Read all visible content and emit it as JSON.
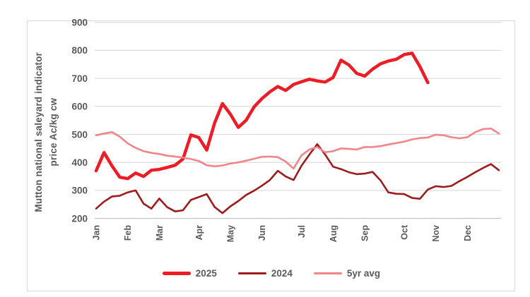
{
  "style": {
    "text_color": "#595959",
    "gridline_color": "#d9d9d9",
    "axis_line_color": "#bfbfbf",
    "background": "#ffffff"
  },
  "chart_data": {
    "type": "line",
    "title": "",
    "ylabel": "Mutton national saleyard indicator price Ac/kg cw",
    "ylabel_line1": "Mutton national saleyard indicator",
    "ylabel_line2": "price Ac/kg cw",
    "y_axis": {
      "min": 200,
      "max": 900,
      "ticks": [
        900,
        800,
        700,
        600,
        500,
        400,
        300,
        200
      ]
    },
    "x_axis": {
      "unit": "week",
      "total_weeks": 52,
      "months": [
        {
          "label": "Jan",
          "week": 1
        },
        {
          "label": "Feb",
          "week": 5
        },
        {
          "label": "Mar",
          "week": 9
        },
        {
          "label": "Apr",
          "week": 14
        },
        {
          "label": "May",
          "week": 18
        },
        {
          "label": "Jun",
          "week": 22
        },
        {
          "label": "Jul",
          "week": 27
        },
        {
          "label": "Aug",
          "week": 31
        },
        {
          "label": "Sep",
          "week": 35
        },
        {
          "label": "Oct",
          "week": 40
        },
        {
          "label": "Nov",
          "week": 44
        },
        {
          "label": "Dec",
          "week": 48
        }
      ]
    },
    "legend_position": "bottom",
    "grid": true,
    "series": [
      {
        "name": "2025",
        "color": "#ee1c25",
        "stroke_width": 4.5,
        "swatch_height": 5,
        "start_week": 1,
        "values": [
          370,
          435,
          388,
          347,
          342,
          362,
          350,
          372,
          375,
          382,
          390,
          412,
          498,
          489,
          444,
          540,
          610,
          572,
          525,
          551,
          598,
          628,
          652,
          671,
          657,
          678,
          688,
          697,
          691,
          687,
          703,
          765,
          748,
          718,
          708,
          733,
          752,
          762,
          768,
          785,
          790,
          742,
          685
        ]
      },
      {
        "name": "2024",
        "color": "#9e1b1e",
        "stroke_width": 2.6,
        "swatch_height": 3,
        "start_week": 1,
        "values": [
          235,
          260,
          278,
          281,
          293,
          300,
          253,
          235,
          271,
          240,
          225,
          229,
          266,
          276,
          287,
          241,
          219,
          243,
          262,
          284,
          299,
          317,
          337,
          370,
          350,
          337,
          388,
          428,
          465,
          428,
          385,
          376,
          365,
          358,
          360,
          366,
          336,
          293,
          288,
          287,
          273,
          270,
          303,
          315,
          312,
          316,
          333,
          348,
          365,
          380,
          394,
          372
        ]
      },
      {
        "name": "5yr avg",
        "color": "#f0868c",
        "stroke_width": 2.6,
        "swatch_height": 3,
        "start_week": 1,
        "values": [
          497,
          503,
          508,
          492,
          468,
          452,
          440,
          434,
          430,
          424,
          421,
          417,
          412,
          405,
          390,
          386,
          389,
          396,
          400,
          406,
          413,
          420,
          421,
          419,
          403,
          378,
          425,
          446,
          455,
          436,
          440,
          450,
          448,
          446,
          455,
          455,
          458,
          464,
          469,
          474,
          482,
          487,
          489,
          499,
          497,
          490,
          486,
          490,
          508,
          519,
          521,
          503
        ]
      }
    ]
  }
}
